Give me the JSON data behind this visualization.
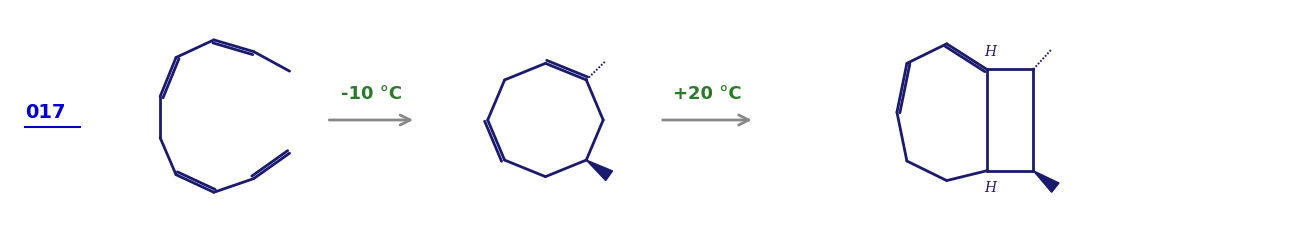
{
  "bg_color": "#ffffff",
  "mol_color": "#1a1a6e",
  "arrow_color": "#888888",
  "temp_color": "#2a7a2a",
  "label_color": "#0000cc",
  "label_text": "017",
  "temp1": "-10 °C",
  "temp2": "+20 °C",
  "figsize": [
    13.0,
    2.4
  ],
  "dpi": 100
}
